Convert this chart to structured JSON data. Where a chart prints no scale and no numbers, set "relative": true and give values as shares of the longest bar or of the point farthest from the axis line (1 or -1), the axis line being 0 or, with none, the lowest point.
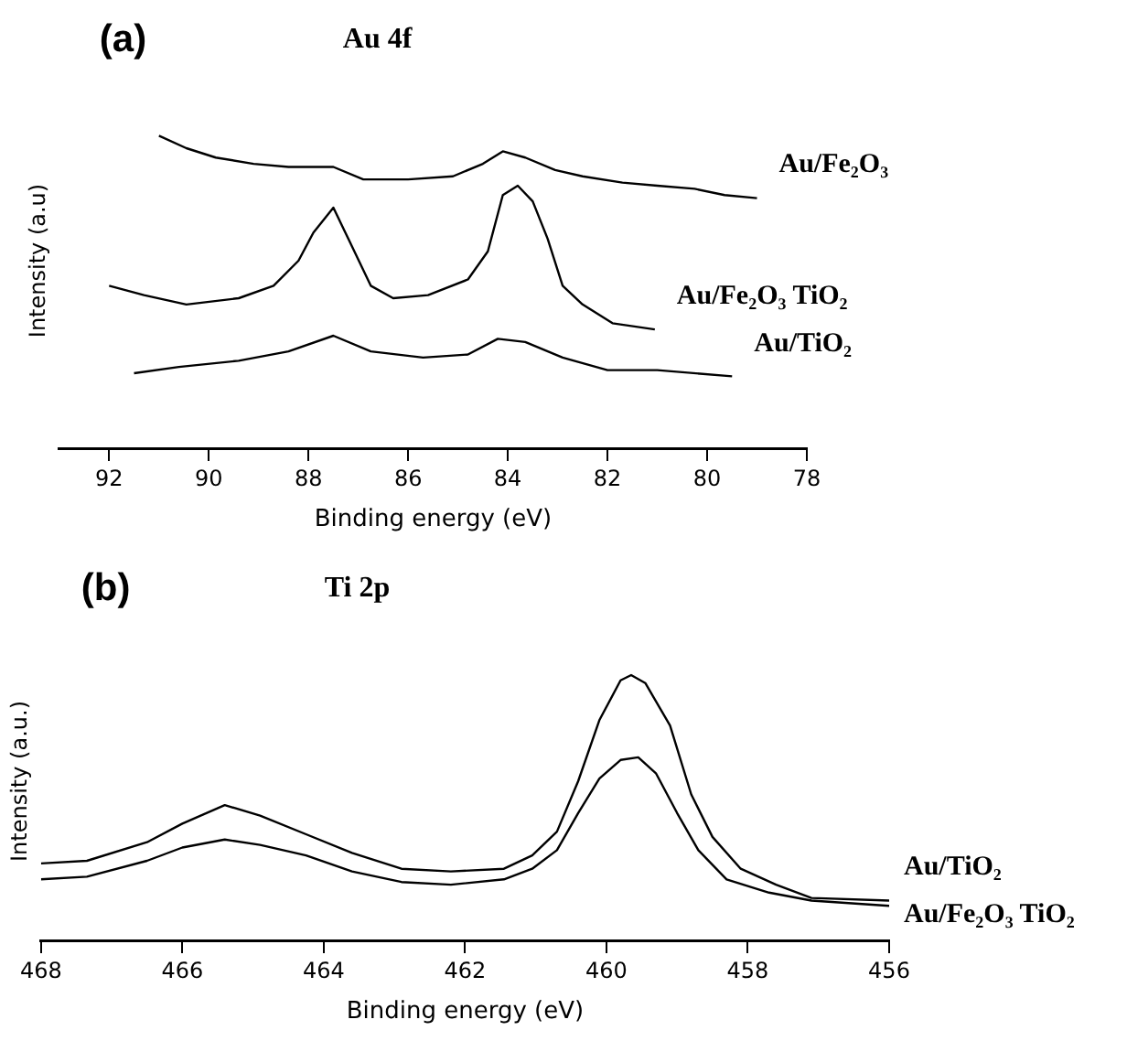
{
  "chart_data": [
    {
      "type": "line",
      "title": "(a)",
      "subtitle": "Au 4f",
      "xlabel": "Binding energy (eV)",
      "ylabel": "Intensity (a.u)",
      "relative": true,
      "xlim": [
        93,
        78
      ],
      "xticks": [
        92,
        90,
        88,
        86,
        84,
        82,
        80,
        78
      ],
      "series": [
        {
          "name": "Au/Fe₂O₃",
          "color": "#000000",
          "x": [
            91.0,
            90.45,
            89.86,
            89.1,
            88.4,
            87.5,
            86.9,
            86.0,
            85.1,
            84.5,
            84.1,
            83.65,
            83.05,
            82.5,
            81.7,
            81.0,
            80.25,
            79.65,
            79.0
          ],
          "values": [
            1.0,
            0.96,
            0.93,
            0.91,
            0.9,
            0.9,
            0.86,
            0.86,
            0.87,
            0.91,
            0.95,
            0.93,
            0.89,
            0.87,
            0.85,
            0.84,
            0.83,
            0.81,
            0.8
          ]
        },
        {
          "name": "Au/Fe₂O₃ TiO₂",
          "color": "#000000",
          "x": [
            92.0,
            91.3,
            90.45,
            89.4,
            88.7,
            88.2,
            87.9,
            87.5,
            87.2,
            86.75,
            86.3,
            85.6,
            84.8,
            84.4,
            84.1,
            83.8,
            83.5,
            83.2,
            82.9,
            82.5,
            81.9,
            81.05
          ],
          "values": [
            0.52,
            0.49,
            0.46,
            0.48,
            0.52,
            0.6,
            0.69,
            0.77,
            0.67,
            0.52,
            0.48,
            0.49,
            0.54,
            0.63,
            0.81,
            0.84,
            0.79,
            0.67,
            0.52,
            0.46,
            0.4,
            0.38
          ]
        },
        {
          "name": "Au/TiO₂",
          "color": "#000000",
          "x": [
            91.5,
            90.6,
            89.4,
            88.4,
            87.5,
            86.75,
            85.7,
            84.8,
            84.2,
            83.65,
            82.9,
            82.0,
            81.0,
            79.5
          ],
          "values": [
            0.24,
            0.26,
            0.28,
            0.31,
            0.36,
            0.31,
            0.29,
            0.3,
            0.35,
            0.34,
            0.29,
            0.25,
            0.25,
            0.23
          ]
        }
      ]
    },
    {
      "type": "line",
      "title": "(b)",
      "subtitle": "Ti 2p",
      "xlabel": "Binding energy (eV)",
      "ylabel": "Intensity (a.u.)",
      "relative": true,
      "xlim": [
        468,
        456
      ],
      "xticks": [
        468,
        466,
        464,
        462,
        460,
        458,
        456
      ],
      "series": [
        {
          "name": "Au/TiO₂",
          "color": "#000000",
          "x": [
            468,
            467.35,
            466.5,
            466.0,
            465.4,
            464.9,
            464.25,
            463.6,
            462.9,
            462.2,
            461.45,
            461.05,
            460.7,
            460.4,
            460.1,
            459.8,
            459.65,
            459.45,
            459.1,
            458.8,
            458.5,
            458.1,
            457.6,
            457.1,
            456
          ],
          "values": [
            0.29,
            0.3,
            0.37,
            0.44,
            0.51,
            0.47,
            0.4,
            0.33,
            0.27,
            0.26,
            0.27,
            0.32,
            0.41,
            0.6,
            0.83,
            0.98,
            1.0,
            0.97,
            0.81,
            0.55,
            0.39,
            0.27,
            0.21,
            0.16,
            0.15
          ]
        },
        {
          "name": "Au/Fe₂O₃ TiO₂",
          "color": "#000000",
          "x": [
            468,
            467.35,
            466.5,
            466.0,
            465.4,
            464.9,
            464.25,
            463.6,
            462.9,
            462.2,
            461.45,
            461.05,
            460.7,
            460.4,
            460.1,
            459.8,
            459.55,
            459.3,
            459.0,
            458.7,
            458.3,
            457.7,
            457.1,
            456
          ],
          "values": [
            0.23,
            0.24,
            0.3,
            0.35,
            0.38,
            0.36,
            0.32,
            0.26,
            0.22,
            0.21,
            0.23,
            0.27,
            0.34,
            0.48,
            0.61,
            0.68,
            0.69,
            0.63,
            0.48,
            0.34,
            0.23,
            0.18,
            0.15,
            0.13
          ]
        }
      ]
    }
  ]
}
